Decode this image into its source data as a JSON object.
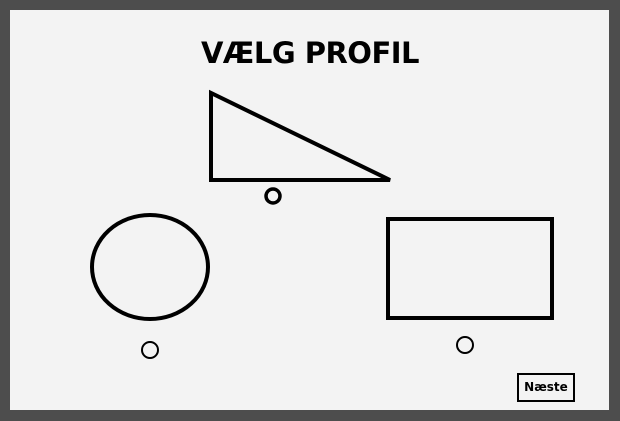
{
  "page": {
    "title": "VÆLG PROFIL"
  },
  "profiles": [
    {
      "shape": "triangle-icon"
    },
    {
      "shape": "circle-icon"
    },
    {
      "shape": "rectangle-icon"
    }
  ],
  "footer": {
    "next_label": "Næste"
  },
  "colors": {
    "frame": "#4d4d4d",
    "panel": "#f3f3f3",
    "stroke": "#000000"
  }
}
